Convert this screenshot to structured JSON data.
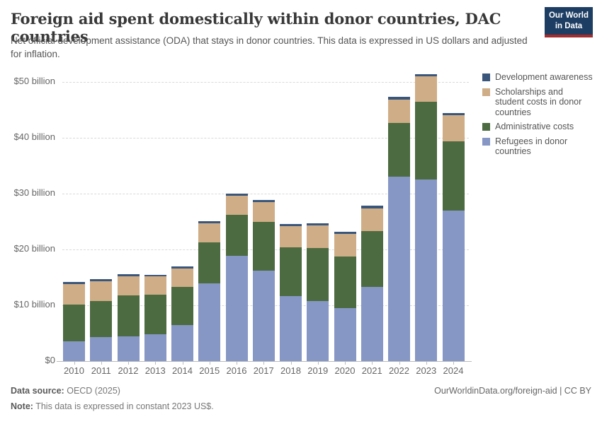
{
  "header": {
    "title": "Foreign aid spent domestically within donor countries, DAC countries",
    "subtitle": "Net official development assistance (ODA) that stays in donor countries. This data is expressed in US dollars and adjusted for inflation.",
    "logo": {
      "line1": "Our World",
      "line2": "in Data",
      "bg_color": "#1d3d63",
      "accent_color": "#a52c2c"
    }
  },
  "chart_data": {
    "type": "bar",
    "stacked": true,
    "title": "Foreign aid spent domestically within donor countries, DAC countries",
    "unit": "US$ billion (constant 2023 US$)",
    "categories": [
      "2010",
      "2011",
      "2012",
      "2013",
      "2014",
      "2015",
      "2016",
      "2017",
      "2018",
      "2019",
      "2020",
      "2021",
      "2022",
      "2023",
      "2024"
    ],
    "series": [
      {
        "name": "Refugees in donor countries",
        "color": "#8697c5",
        "values": [
          3.6,
          4.3,
          4.4,
          4.8,
          6.5,
          13.9,
          18.8,
          16.2,
          11.7,
          10.8,
          9.5,
          13.3,
          33.1,
          32.5,
          27.0
        ]
      },
      {
        "name": "Administrative costs",
        "color": "#4c6b40",
        "values": [
          6.5,
          6.5,
          7.4,
          7.1,
          6.8,
          7.4,
          7.4,
          8.8,
          8.7,
          9.5,
          9.2,
          10.0,
          9.5,
          13.9,
          12.4
        ]
      },
      {
        "name": "Scholarships and student costs in donor countries",
        "color": "#cfad87",
        "values": [
          3.7,
          3.5,
          3.4,
          3.3,
          3.3,
          3.4,
          3.4,
          3.5,
          3.8,
          4.0,
          4.1,
          4.1,
          4.3,
          4.6,
          4.6
        ]
      },
      {
        "name": "Development awareness",
        "color": "#3a567b",
        "values": [
          0.4,
          0.4,
          0.4,
          0.3,
          0.4,
          0.4,
          0.4,
          0.4,
          0.4,
          0.4,
          0.4,
          0.4,
          0.4,
          0.4,
          0.4
        ]
      }
    ],
    "totals": [
      14.2,
      14.7,
      15.6,
      15.5,
      17.0,
      25.1,
      30.0,
      28.9,
      24.6,
      24.7,
      23.2,
      27.8,
      47.3,
      51.4,
      44.4
    ],
    "xlabel": "",
    "ylabel": "",
    "ylim": [
      0,
      50
    ],
    "ytick_step": 10,
    "ytick_labels": [
      "$0",
      "$10 billion",
      "$20 billion",
      "$30 billion",
      "$40 billion",
      "$50 billion"
    ],
    "grid": "horizontal-dashed",
    "legend_position": "right"
  },
  "legend": {
    "items": [
      {
        "label": "Development awareness",
        "color": "#3a567b"
      },
      {
        "label": "Scholarships and student costs in donor countries",
        "color": "#cfad87"
      },
      {
        "label": "Administrative costs",
        "color": "#4c6b40"
      },
      {
        "label": "Refugees in donor countries",
        "color": "#8697c5"
      }
    ]
  },
  "footer": {
    "data_source_label": "Data source:",
    "data_source_value": "OECD (2025)",
    "note_label": "Note:",
    "note_value": "This data is expressed in constant 2023 US$.",
    "url": "OurWorldinData.org/foreign-aid | CC BY"
  }
}
